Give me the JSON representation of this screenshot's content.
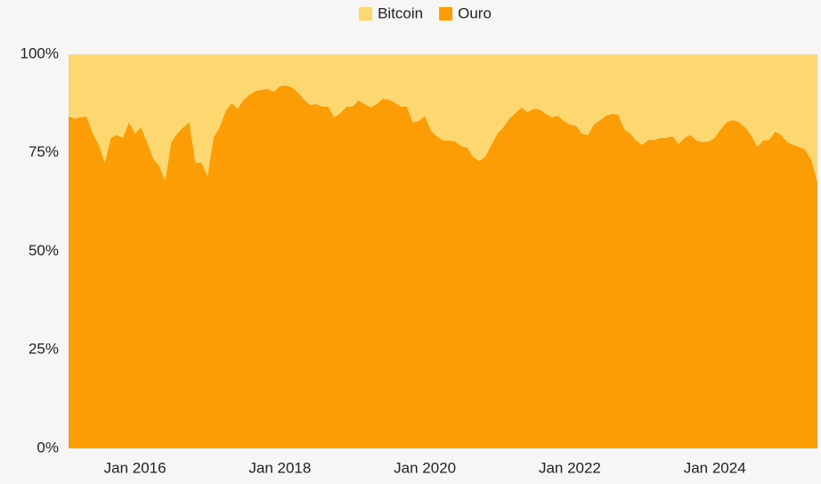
{
  "chart_data": {
    "type": "area",
    "stacked": true,
    "legend": "top",
    "x": [
      "2015-02",
      "2015-03",
      "2015-04",
      "2015-05",
      "2015-06",
      "2015-07",
      "2015-08",
      "2015-09",
      "2015-10",
      "2015-11",
      "2015-12",
      "2016-01",
      "2016-02",
      "2016-03",
      "2016-04",
      "2016-05",
      "2016-06",
      "2016-07",
      "2016-08",
      "2016-09",
      "2016-10",
      "2016-11",
      "2016-12",
      "2017-01",
      "2017-02",
      "2017-03",
      "2017-04",
      "2017-05",
      "2017-06",
      "2017-07",
      "2017-08",
      "2017-09",
      "2017-10",
      "2017-11",
      "2017-12",
      "2018-01",
      "2018-02",
      "2018-03",
      "2018-04",
      "2018-05",
      "2018-06",
      "2018-07",
      "2018-08",
      "2018-09",
      "2018-10",
      "2018-11",
      "2018-12",
      "2019-01",
      "2019-02",
      "2019-03",
      "2019-04",
      "2019-05",
      "2019-06",
      "2019-07",
      "2019-08",
      "2019-09",
      "2019-10",
      "2019-11",
      "2019-12",
      "2020-01",
      "2020-02",
      "2020-03",
      "2020-04",
      "2020-05",
      "2020-06",
      "2020-07",
      "2020-08",
      "2020-09",
      "2020-10",
      "2020-11",
      "2020-12",
      "2021-01",
      "2021-02",
      "2021-03",
      "2021-04",
      "2021-05",
      "2021-06",
      "2021-07",
      "2021-08",
      "2021-09",
      "2021-10",
      "2021-11",
      "2021-12",
      "2022-01",
      "2022-02",
      "2022-03",
      "2022-04",
      "2022-05",
      "2022-06",
      "2022-07",
      "2022-08",
      "2022-09",
      "2022-10",
      "2022-11",
      "2022-12",
      "2023-01",
      "2023-02",
      "2023-03",
      "2023-04",
      "2023-05",
      "2023-06",
      "2023-07",
      "2023-08",
      "2023-09",
      "2023-10",
      "2023-11",
      "2023-12",
      "2024-01",
      "2024-02",
      "2024-03",
      "2024-04",
      "2024-05",
      "2024-06",
      "2024-07",
      "2024-08",
      "2024-09",
      "2024-10",
      "2024-11",
      "2024-12",
      "2025-01",
      "2025-02",
      "2025-03",
      "2025-04",
      "2025-05",
      "2025-06"
    ],
    "series": [
      {
        "name": "Bitcoin",
        "color": "#fdd870",
        "values": [
          15.8,
          16.3,
          16.0,
          15.8,
          20.1,
          23.0,
          27.5,
          21.2,
          20.5,
          21.2,
          17.2,
          20.1,
          18.5,
          22.3,
          26.4,
          28.4,
          32.0,
          22.3,
          20.1,
          18.5,
          17.2,
          27.5,
          27.5,
          30.9,
          21.2,
          18.5,
          14.4,
          12.4,
          13.8,
          11.5,
          10.2,
          9.3,
          9.0,
          8.8,
          9.5,
          8.1,
          7.9,
          8.4,
          9.7,
          11.5,
          12.9,
          12.6,
          13.3,
          13.3,
          16.0,
          14.9,
          13.3,
          13.3,
          11.7,
          12.6,
          13.5,
          12.6,
          11.3,
          11.5,
          12.2,
          13.3,
          13.3,
          17.2,
          16.9,
          15.6,
          19.4,
          20.8,
          21.9,
          21.9,
          22.1,
          23.3,
          23.7,
          26.0,
          27.1,
          26.0,
          23.0,
          20.1,
          18.5,
          16.3,
          14.9,
          13.5,
          14.7,
          13.8,
          14.0,
          15.1,
          16.0,
          15.6,
          16.9,
          17.8,
          18.1,
          20.1,
          20.5,
          17.8,
          16.7,
          15.6,
          15.1,
          15.3,
          19.0,
          20.1,
          21.9,
          23.0,
          21.7,
          21.7,
          21.2,
          21.2,
          20.8,
          22.8,
          21.2,
          20.5,
          21.9,
          22.3,
          22.1,
          21.2,
          19.0,
          17.2,
          16.7,
          17.2,
          18.5,
          20.5,
          23.5,
          21.9,
          21.7,
          19.6,
          20.5,
          22.3,
          23.0,
          23.5,
          24.2,
          26.9,
          32.5
        ]
      },
      {
        "name": "Ouro",
        "color": "#fc9d05",
        "values": [
          84.2,
          83.7,
          84.0,
          84.2,
          79.9,
          77.0,
          72.5,
          78.8,
          79.5,
          78.8,
          82.8,
          79.9,
          81.5,
          77.7,
          73.6,
          71.6,
          68.0,
          77.7,
          79.9,
          81.5,
          82.8,
          72.5,
          72.5,
          69.1,
          78.8,
          81.5,
          85.6,
          87.6,
          86.2,
          88.5,
          89.8,
          90.7,
          91.0,
          91.2,
          90.5,
          91.9,
          92.1,
          91.6,
          90.3,
          88.5,
          87.1,
          87.4,
          86.7,
          86.7,
          84.0,
          85.1,
          86.7,
          86.7,
          88.3,
          87.4,
          86.5,
          87.4,
          88.7,
          88.5,
          87.8,
          86.7,
          86.7,
          82.8,
          83.1,
          84.4,
          80.6,
          79.2,
          78.1,
          78.1,
          77.9,
          76.7,
          76.3,
          74.0,
          72.9,
          74.0,
          77.0,
          79.9,
          81.5,
          83.7,
          85.1,
          86.5,
          85.3,
          86.2,
          86.0,
          84.9,
          84.0,
          84.4,
          83.1,
          82.2,
          81.9,
          79.9,
          79.5,
          82.2,
          83.3,
          84.4,
          84.9,
          84.7,
          81.0,
          79.9,
          78.1,
          77.0,
          78.3,
          78.3,
          78.8,
          78.8,
          79.2,
          77.2,
          78.8,
          79.5,
          78.1,
          77.7,
          77.9,
          78.8,
          81.0,
          82.8,
          83.3,
          82.8,
          81.5,
          79.5,
          76.5,
          78.1,
          78.3,
          80.4,
          79.5,
          77.7,
          77.0,
          76.5,
          75.8,
          73.1,
          67.5
        ]
      }
    ],
    "xlim": [
      "2015-02",
      "2025-06"
    ],
    "xticks": [
      {
        "value": "2016-01",
        "label": "Jan 2016"
      },
      {
        "value": "2018-01",
        "label": "Jan 2018"
      },
      {
        "value": "2020-01",
        "label": "Jan 2020"
      },
      {
        "value": "2022-01",
        "label": "Jan 2022"
      },
      {
        "value": "2024-01",
        "label": "Jan 2024"
      }
    ],
    "ylim": [
      0,
      100
    ],
    "yticks": [
      {
        "value": 0,
        "label": "0%"
      },
      {
        "value": 25,
        "label": "25%"
      },
      {
        "value": 50,
        "label": "50%"
      },
      {
        "value": 75,
        "label": "75%"
      },
      {
        "value": 100,
        "label": "100%"
      }
    ],
    "grid": false
  }
}
